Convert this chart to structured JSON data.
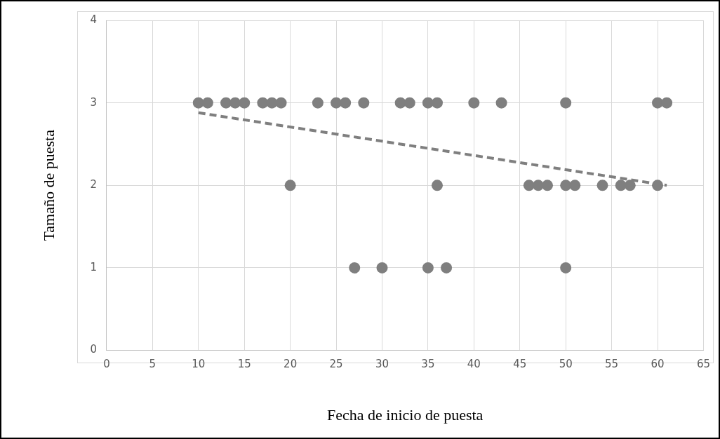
{
  "chart_data": {
    "type": "scatter",
    "xlabel": "Fecha de inicio de puesta",
    "ylabel": "Tamaño de puesta",
    "xlim": [
      0,
      65
    ],
    "xticks": [
      0,
      5,
      10,
      15,
      20,
      25,
      30,
      35,
      40,
      45,
      50,
      55,
      60,
      65
    ],
    "ylim": [
      0,
      4
    ],
    "yticks": [
      0,
      1,
      2,
      3,
      4
    ],
    "grid": true,
    "legend": false,
    "marker": "circle",
    "series": [
      {
        "color": "#7f7f7f",
        "x": [
          10,
          11,
          13,
          14,
          15,
          17,
          18,
          19,
          23,
          25,
          26,
          28,
          32,
          33,
          35,
          36,
          40,
          43,
          50,
          60,
          61,
          20,
          36,
          46,
          47,
          48,
          50,
          51,
          54,
          56,
          57,
          60,
          27,
          30,
          35,
          37,
          50
        ],
        "values": [
          3,
          3,
          3,
          3,
          3,
          3,
          3,
          3,
          3,
          3,
          3,
          3,
          3,
          3,
          3,
          3,
          3,
          3,
          3,
          3,
          3,
          2,
          2,
          2,
          2,
          2,
          2,
          2,
          2,
          2,
          2,
          2,
          1,
          1,
          1,
          1,
          1
        ]
      },
      {
        "type": "line",
        "color": "#7f7f7f",
        "line_style": "dashed",
        "marker": "none",
        "x": [
          10,
          61
        ],
        "values": [
          2.88,
          2.0
        ]
      }
    ]
  }
}
